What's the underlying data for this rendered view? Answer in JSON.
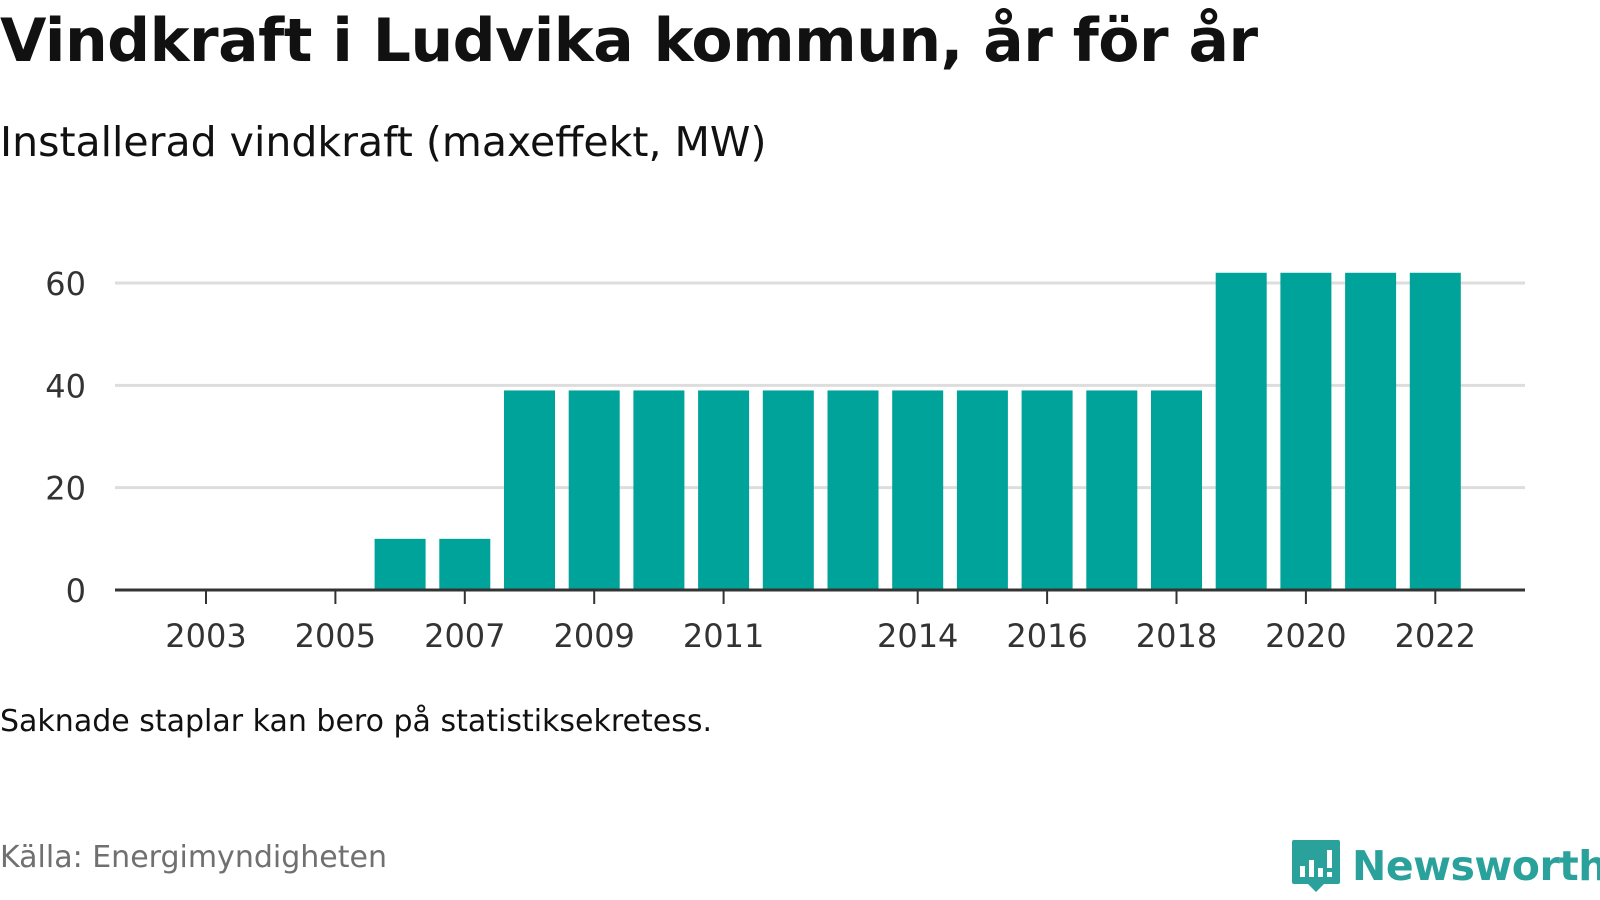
{
  "header": {
    "title": "Vindkraft i Ludvika kommun, år för år",
    "subtitle": "Installerad vindkraft (maxeffekt, MW)"
  },
  "footer": {
    "note": "Saknade staplar kan bero på statistiksekretess.",
    "source": "Källa: Energimyndigheten",
    "brand": "Newsworthy",
    "brand_icon": "bar-chart-speech-bubble-icon"
  },
  "colors": {
    "bar": "#00a39a",
    "grid": "#dddddd",
    "axis": "#333333",
    "brand": "#2aa19b"
  },
  "chart_data": {
    "type": "bar",
    "x": [
      2003,
      2004,
      2005,
      2006,
      2007,
      2008,
      2009,
      2010,
      2011,
      2012,
      2013,
      2014,
      2015,
      2016,
      2017,
      2018,
      2019,
      2020,
      2021,
      2022
    ],
    "values": [
      null,
      null,
      null,
      10,
      10,
      39,
      39,
      39,
      39,
      39,
      39,
      39,
      39,
      39,
      39,
      39,
      62,
      62,
      62,
      62
    ],
    "x_tick_labels": [
      "2003",
      "2005",
      "2007",
      "2009",
      "2011",
      "2014",
      "2016",
      "2018",
      "2020",
      "2022"
    ],
    "y_ticks": [
      0,
      20,
      40,
      60
    ],
    "ylim": [
      0,
      64
    ],
    "xlabel": "",
    "ylabel": "",
    "grid": true
  }
}
